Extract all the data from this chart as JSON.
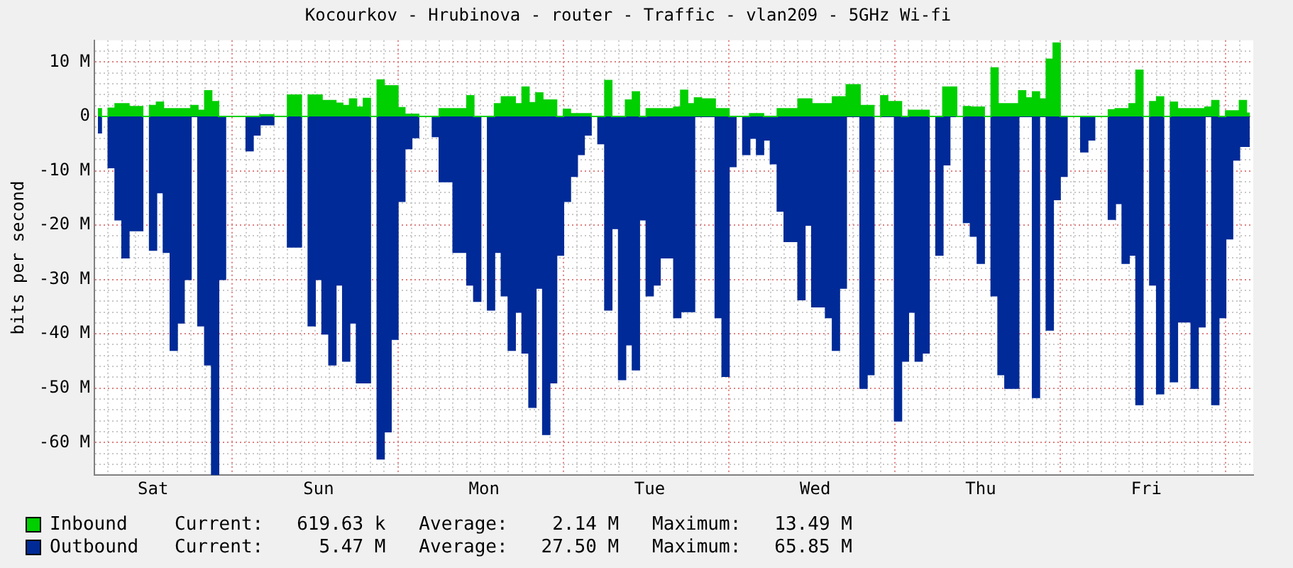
{
  "chart_data": {
    "type": "area",
    "title": "Kocourkov - Hrubinova - router - Traffic - vlan209 - 5GHz Wi-fi",
    "ylabel": "bits per second",
    "categories": [
      null,
      null,
      null,
      null,
      null,
      null,
      null,
      null,
      "Sat",
      null,
      null,
      null,
      null,
      null,
      null,
      null,
      null,
      null,
      null,
      null,
      null,
      null,
      null,
      null,
      null,
      null,
      null,
      null,
      null,
      null,
      null,
      null,
      "Sun",
      null,
      null,
      null,
      null,
      null,
      null,
      null,
      null,
      null,
      null,
      null,
      null,
      null,
      null,
      null,
      null,
      null,
      null,
      null,
      null,
      null,
      null,
      null,
      "Mon",
      null,
      null,
      null,
      null,
      null,
      null,
      null,
      null,
      null,
      null,
      null,
      null,
      null,
      null,
      null,
      null,
      null,
      null,
      null,
      null,
      null,
      null,
      null,
      "Tue",
      null,
      null,
      null,
      null,
      null,
      null,
      null,
      null,
      null,
      null,
      null,
      null,
      null,
      null,
      null,
      null,
      null,
      null,
      null,
      null,
      null,
      null,
      null,
      "Wed",
      null,
      null,
      null,
      null,
      null,
      null,
      null,
      null,
      null,
      null,
      null,
      null,
      null,
      null,
      null,
      null,
      null,
      null,
      null,
      null,
      null,
      null,
      null,
      "Thu",
      null,
      null,
      null,
      null,
      null,
      null,
      null,
      null,
      null,
      null,
      null,
      null,
      null,
      null,
      null,
      null,
      null,
      null,
      null,
      null,
      null,
      null,
      null,
      "Fri",
      null,
      null,
      null,
      null,
      null,
      null,
      null,
      null,
      null,
      null,
      null,
      null,
      null,
      null,
      null
    ],
    "ylim": [
      -66,
      14
    ],
    "yticks": [
      {
        "value": 12,
        "label": null
      },
      {
        "value": 10,
        "label": "10 M"
      },
      {
        "value": 8,
        "label": null
      },
      {
        "value": 6,
        "label": null
      },
      {
        "value": 4,
        "label": null
      },
      {
        "value": 2,
        "label": null
      },
      0,
      {
        "value": -2,
        "label": null
      },
      {
        "value": -4,
        "label": null
      },
      {
        "value": -6,
        "label": null
      },
      {
        "value": -8,
        "label": null
      },
      {
        "value": -10,
        "label": "-10 M"
      },
      {
        "value": -12,
        "label": null
      },
      {
        "value": -14,
        "label": null
      },
      {
        "value": -16,
        "label": null
      },
      {
        "value": -18,
        "label": null
      },
      {
        "value": -20,
        "label": "-20 M"
      },
      {
        "value": -22,
        "label": null
      },
      {
        "value": -24,
        "label": null
      },
      {
        "value": -26,
        "label": null
      },
      {
        "value": -28,
        "label": null
      },
      {
        "value": -30,
        "label": "-30 M"
      },
      {
        "value": -32,
        "label": null
      },
      {
        "value": -34,
        "label": null
      },
      {
        "value": -36,
        "label": null
      },
      {
        "value": -38,
        "label": null
      },
      {
        "value": -40,
        "label": "-40 M"
      },
      {
        "value": -42,
        "label": null
      },
      {
        "value": -44,
        "label": null
      },
      {
        "value": -46,
        "label": null
      },
      {
        "value": -48,
        "label": null
      },
      {
        "value": -50,
        "label": "-50 M"
      },
      {
        "value": -52,
        "label": null
      },
      {
        "value": -54,
        "label": null
      },
      {
        "value": -56,
        "label": null
      },
      {
        "value": -58,
        "label": null
      },
      {
        "value": -60,
        "label": "-60 M"
      },
      {
        "value": -62,
        "label": null
      },
      {
        "value": -64,
        "label": null
      }
    ],
    "grid": true,
    "legend": "bottom",
    "marker": "none",
    "annotations": [
      "Current:   619.63 k   Average:    2.14 M   Maximum:   13.49 M",
      "Current:     5.47 M   Average:   27.50 M   Maximum:   65.85 M"
    ],
    "series": [
      {
        "name": "Inbound",
        "color": "#00cf00",
        "values": [
          1.4,
          0,
          1.5,
          2.3,
          2.3,
          1.8,
          1.8,
          0,
          2,
          2.6,
          1.4,
          1.4,
          1.4,
          1.4,
          2,
          1.1,
          4.7,
          2.7,
          0,
          0,
          0,
          0,
          0,
          0,
          0.3,
          0.3,
          0,
          0,
          3.9,
          3.9,
          0,
          3.9,
          3.9,
          2.9,
          2.9,
          2.4,
          2,
          3.2,
          1.7,
          3.3,
          0,
          6.7,
          5.6,
          5.6,
          1.6,
          0.4,
          0.4,
          0,
          0,
          0,
          1.4,
          1.4,
          1.4,
          1.4,
          3.8,
          0,
          0,
          0,
          2.3,
          3.6,
          3.6,
          2.3,
          5.4,
          2.5,
          4.3,
          3,
          3,
          0,
          1.3,
          0.5,
          0.5,
          0.5,
          0,
          0,
          6.6,
          0,
          0,
          3,
          4.5,
          0,
          1.4,
          1.4,
          1.4,
          1.4,
          1.7,
          4.8,
          2.3,
          3.4,
          3.2,
          3.2,
          1.4,
          1.4,
          0,
          0,
          0,
          0.5,
          0.5,
          0,
          0,
          1.4,
          1.4,
          1.4,
          3.2,
          3.2,
          2.3,
          2.3,
          2.3,
          3.6,
          3.6,
          5.8,
          5.8,
          2,
          2,
          0,
          3.8,
          2.7,
          2.7,
          0,
          1.1,
          1.1,
          1.1,
          0,
          0,
          5.4,
          5.4,
          0,
          1.8,
          1.7,
          1.7,
          0,
          8.9,
          2.3,
          2.3,
          2.3,
          4.7,
          3.4,
          4.5,
          3.2,
          10.5,
          13.5,
          0,
          0,
          0,
          0,
          0,
          0,
          0,
          1.2,
          1.4,
          1.4,
          2.3,
          8.5,
          0,
          2.7,
          3.6,
          0,
          2.6,
          1.4,
          1.4,
          1.4,
          1.4,
          1.7,
          2.9,
          0,
          1,
          1,
          2.9,
          0.6
        ]
      },
      {
        "name": "Outbound",
        "color": "#002a97",
        "values": [
          -3,
          0,
          -9.4,
          -19,
          -26,
          -21,
          -21,
          0,
          -24.6,
          -14,
          -25,
          -43,
          -38,
          -30,
          0,
          -38.5,
          -45.7,
          -65.9,
          -30,
          0,
          0,
          0,
          -6.3,
          -3.4,
          -1.5,
          -1.5,
          0,
          0,
          -24,
          -24,
          0,
          -38.5,
          -30,
          -40,
          -45.7,
          -31,
          -45,
          -38,
          -49,
          -49,
          0,
          -63,
          -58,
          -41,
          -15.6,
          -5.9,
          -3.9,
          0,
          0,
          -3.7,
          -12,
          -12,
          -25,
          -25,
          -31,
          -34,
          0,
          -35.6,
          -25,
          -33,
          -43,
          -36,
          -43.5,
          -53.5,
          -31.6,
          -58.5,
          -49,
          -25.5,
          -15.6,
          -11,
          -7,
          -3.4,
          0,
          -5,
          -35.6,
          -20.6,
          -48.4,
          -42,
          -46.6,
          -19,
          -33,
          -31,
          -26,
          -26,
          -37,
          -35.9,
          -35.9,
          0,
          0,
          0,
          -37,
          -47.8,
          -9.2,
          0,
          -7,
          -4,
          -7,
          -4.3,
          -8.7,
          -17.4,
          -23,
          -23,
          -33.7,
          -20,
          -35,
          -35,
          -37,
          -43,
          -31.6,
          0,
          0,
          -50,
          -47.5,
          0,
          0,
          0,
          -56,
          -45,
          -36,
          -45,
          -43.5,
          0,
          -25.5,
          -8.9,
          0,
          0,
          -19.5,
          -22,
          -27,
          0,
          -33,
          -47.5,
          -50,
          -50,
          0,
          0,
          -51.7,
          0,
          -39.3,
          -15.3,
          -11,
          0,
          0,
          -6.5,
          -4.3,
          0,
          0,
          -18.9,
          -16,
          -27,
          -25.5,
          -53,
          0,
          -31,
          -51,
          0,
          -48.8,
          -37.8,
          -37.8,
          -50,
          -38.7,
          0,
          -53,
          -37,
          -22.5,
          -8,
          -5.5,
          -5.5
        ]
      }
    ]
  }
}
